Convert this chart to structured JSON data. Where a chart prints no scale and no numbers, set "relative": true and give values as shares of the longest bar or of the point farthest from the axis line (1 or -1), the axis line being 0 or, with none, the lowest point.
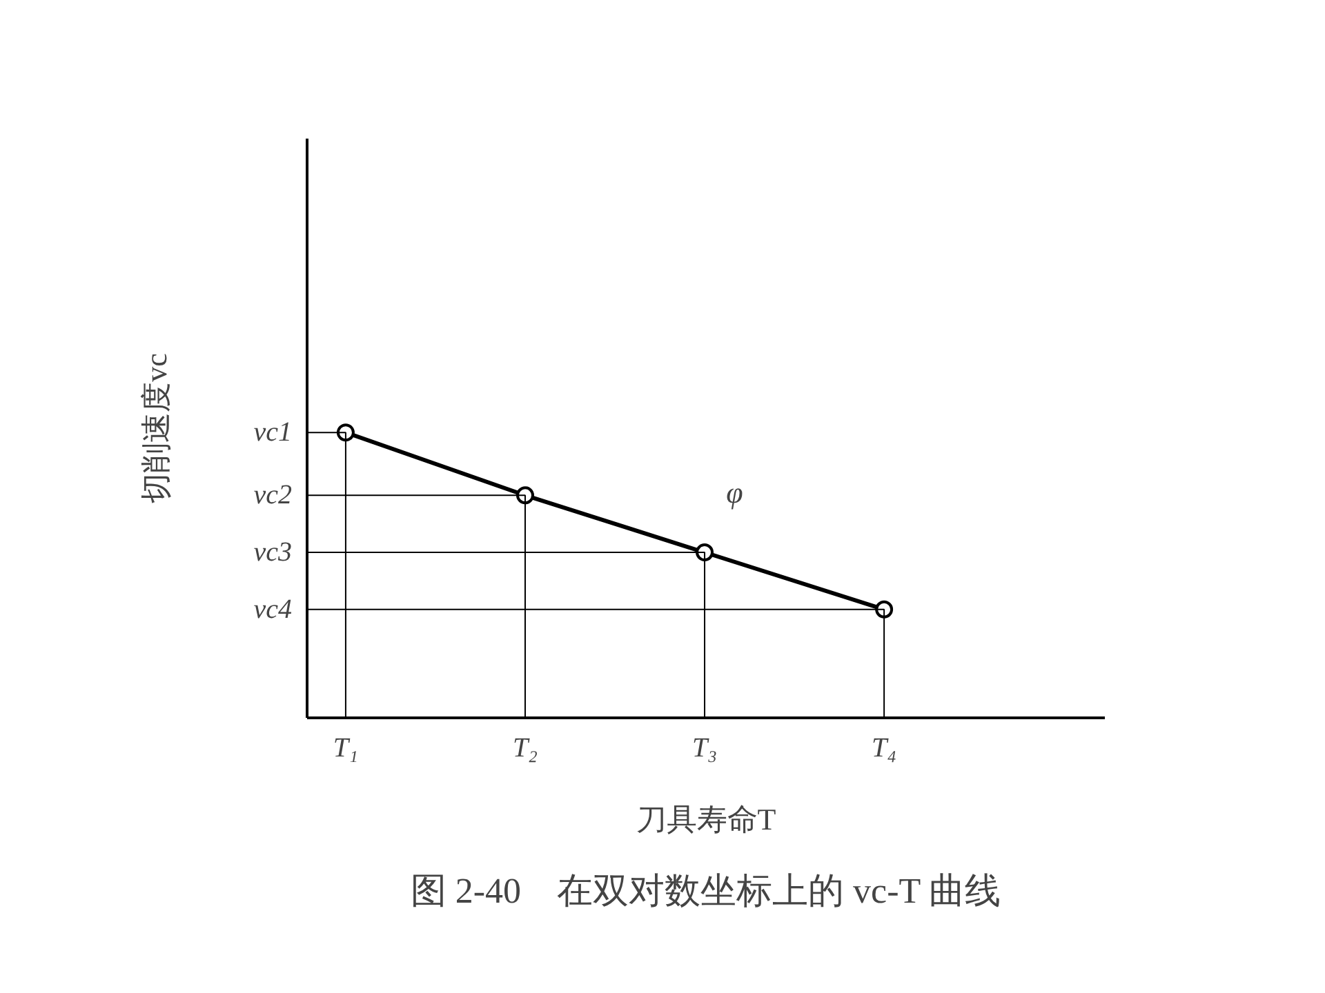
{
  "chart_data": {
    "type": "line",
    "relative": true,
    "title": "图 2-40　在双对数坐标上的 vc-T 曲线",
    "xlabel": "刀具寿命T",
    "ylabel": "切削速度vc",
    "categories": [
      "T₁",
      "T₂",
      "T₃",
      "T₄"
    ],
    "series": [
      {
        "color": "#000000",
        "values": [
          1,
          0.78,
          0.58,
          0.38
        ]
      }
    ],
    "marker": "circle",
    "ref_lines": [
      {
        "axis": "y",
        "value": 1,
        "label": "vc1"
      },
      {
        "axis": "y",
        "value": 0.78,
        "label": "vc2"
      },
      {
        "axis": "y",
        "value": 0.58,
        "label": "vc3"
      },
      {
        "axis": "y",
        "value": 0.38,
        "label": "vc4"
      }
    ],
    "annotations": [
      "φ"
    ]
  }
}
